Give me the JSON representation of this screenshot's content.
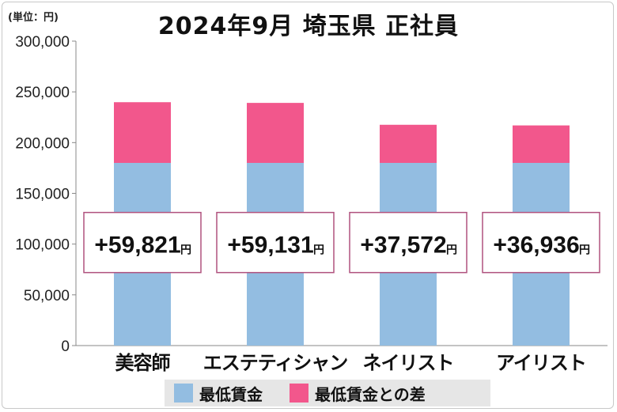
{
  "unit_label": "(単位：円)",
  "title": "2024年9月 埼玉県 正社員",
  "colors": {
    "min_wage": "#93bde1",
    "diff": "#f2578c",
    "callout_border": "#b0527e",
    "axis": "#888888"
  },
  "legend": {
    "min_wage": "最低賃金",
    "diff": "最低賃金との差"
  },
  "chart_data": {
    "type": "bar",
    "stacked": true,
    "categories": [
      "美容師",
      "エステティシャン",
      "ネイリスト",
      "アイリスト"
    ],
    "series": [
      {
        "name": "最低賃金",
        "values": [
          180000,
          180000,
          180000,
          180000
        ]
      },
      {
        "name": "最低賃金との差",
        "values": [
          59821,
          59131,
          37572,
          36936
        ]
      }
    ],
    "callouts": [
      {
        "amount": "+59,821",
        "unit": "円"
      },
      {
        "amount": "+59,131",
        "unit": "円"
      },
      {
        "amount": "+37,572",
        "unit": "円"
      },
      {
        "amount": "+36,936",
        "unit": "円"
      }
    ],
    "yticks": [
      "0",
      "50,000",
      "100,000",
      "150,000",
      "200,000",
      "250,000",
      "300,000"
    ],
    "ylim": [
      0,
      300000
    ],
    "grid": false,
    "legend_position": "bottom"
  }
}
